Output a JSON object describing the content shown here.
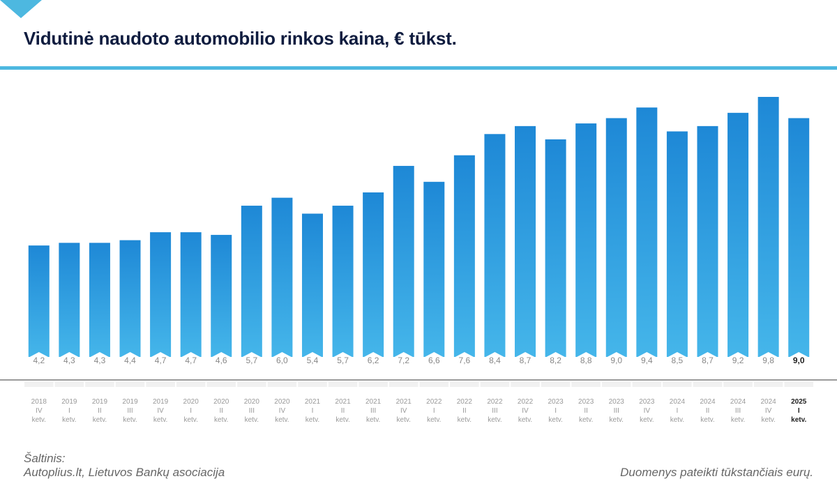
{
  "colors": {
    "title": "#0f1c3f",
    "accent": "#4db8e0",
    "bar_top": "#1e88d6",
    "bar_bottom": "#45b6ea",
    "value_label": "#888888",
    "axis_line": "#9a9a9a",
    "tick_label": "#999999",
    "tick_band": "#f1f1f1",
    "highlight_text": "#222222"
  },
  "header": {
    "title": "Vidutinė naudoto automobilio rinkos kaina, € tūkst."
  },
  "footer": {
    "source_heading": "Šaltinis:",
    "source_text": "Autoplius.lt, Lietuvos Bankų asociacija",
    "note": "Duomenys pateikti tūkstančiais eurų."
  },
  "chart_data": {
    "type": "bar",
    "title": "Vidutinė naudoto automobilio rinkos kaina, € tūkst.",
    "xlabel": "",
    "ylabel": "",
    "ylim": [
      0,
      9.8
    ],
    "grid": false,
    "highlight_index": 25,
    "categories": [
      {
        "year": "2018",
        "quarter": "IV",
        "unit": "ketv."
      },
      {
        "year": "2019",
        "quarter": "I",
        "unit": "ketv."
      },
      {
        "year": "2019",
        "quarter": "II",
        "unit": "ketv."
      },
      {
        "year": "2019",
        "quarter": "III",
        "unit": "ketv."
      },
      {
        "year": "2019",
        "quarter": "IV",
        "unit": "ketv."
      },
      {
        "year": "2020",
        "quarter": "I",
        "unit": "ketv."
      },
      {
        "year": "2020",
        "quarter": "II",
        "unit": "ketv."
      },
      {
        "year": "2020",
        "quarter": "III",
        "unit": "ketv."
      },
      {
        "year": "2020",
        "quarter": "IV",
        "unit": "ketv."
      },
      {
        "year": "2021",
        "quarter": "I",
        "unit": "ketv."
      },
      {
        "year": "2021",
        "quarter": "II",
        "unit": "ketv."
      },
      {
        "year": "2021",
        "quarter": "III",
        "unit": "ketv."
      },
      {
        "year": "2021",
        "quarter": "IV",
        "unit": "ketv."
      },
      {
        "year": "2022",
        "quarter": "I",
        "unit": "ketv."
      },
      {
        "year": "2022",
        "quarter": "II",
        "unit": "ketv."
      },
      {
        "year": "2022",
        "quarter": "III",
        "unit": "ketv."
      },
      {
        "year": "2022",
        "quarter": "IV",
        "unit": "ketv."
      },
      {
        "year": "2023",
        "quarter": "I",
        "unit": "ketv."
      },
      {
        "year": "2023",
        "quarter": "II",
        "unit": "ketv."
      },
      {
        "year": "2023",
        "quarter": "III",
        "unit": "ketv."
      },
      {
        "year": "2023",
        "quarter": "IV",
        "unit": "ketv."
      },
      {
        "year": "2024",
        "quarter": "I",
        "unit": "ketv."
      },
      {
        "year": "2024",
        "quarter": "II",
        "unit": "ketv."
      },
      {
        "year": "2024",
        "quarter": "III",
        "unit": "ketv."
      },
      {
        "year": "2024",
        "quarter": "IV",
        "unit": "ketv."
      },
      {
        "year": "2025",
        "quarter": "I",
        "unit": "ketv."
      }
    ],
    "values": [
      4.2,
      4.3,
      4.3,
      4.4,
      4.7,
      4.7,
      4.6,
      5.7,
      6.0,
      5.4,
      5.7,
      6.2,
      7.2,
      6.6,
      7.6,
      8.4,
      8.7,
      8.2,
      8.8,
      9.0,
      9.4,
      8.5,
      8.7,
      9.2,
      9.8,
      9.0
    ],
    "value_labels": [
      "4,2",
      "4,3",
      "4,3",
      "4,4",
      "4,7",
      "4,7",
      "4,6",
      "5,7",
      "6,0",
      "5,4",
      "5,7",
      "6,2",
      "7,2",
      "6,6",
      "7,6",
      "8,4",
      "8,7",
      "8,2",
      "8,8",
      "9,0",
      "9,4",
      "8,5",
      "8,7",
      "9,2",
      "9,8",
      "9,0"
    ]
  }
}
